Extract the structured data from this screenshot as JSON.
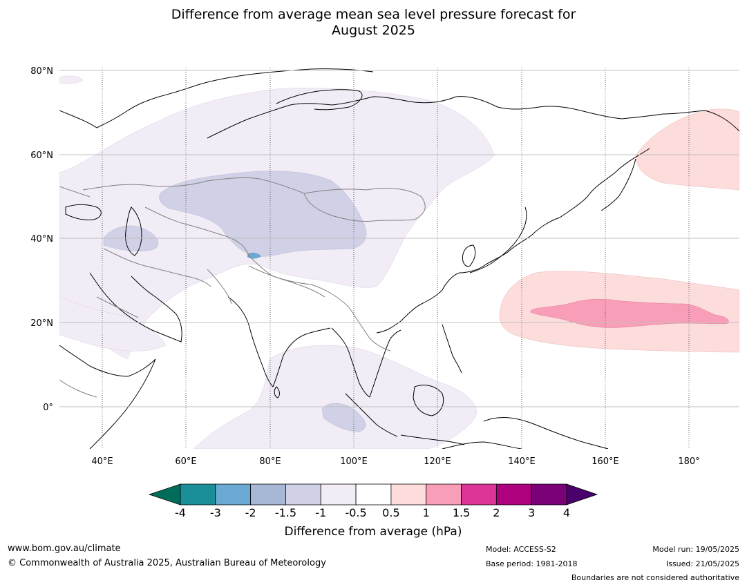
{
  "title_line1": "Difference from average mean sea level pressure forecast for",
  "title_line2": "August 2025",
  "map": {
    "lon_ticks": [
      "40°E",
      "60°E",
      "80°E",
      "100°E",
      "120°E",
      "140°E",
      "160°E",
      "180°"
    ],
    "lat_ticks": [
      "80°N",
      "60°N",
      "40°N",
      "20°N",
      "0°"
    ]
  },
  "colorbar": {
    "label": "Difference from average (hPa)",
    "ticks": [
      "-4",
      "-3",
      "-2",
      "-1.5",
      "-1",
      "-0.5",
      "0.5",
      "1",
      "1.5",
      "2",
      "3",
      "4"
    ],
    "colors": [
      "#1a8f99",
      "#6aa9d1",
      "#a6b8d6",
      "#d0d1e6",
      "#f2ecf6",
      "#ffffff",
      "#fddcdc",
      "#f99eb8",
      "#dd3497",
      "#ae017e",
      "#7a0177"
    ],
    "under_color": "#016c59",
    "over_color": "#49006a"
  },
  "footer": {
    "website": "www.bom.gov.au/climate",
    "copyright": "© Commonwealth of Australia 2025, Australian Bureau of Meteorology",
    "model": "Model: ACCESS-S2",
    "base_period": "Base period: 1981-2018",
    "model_run": "Model run: 19/05/2025",
    "issued": "Issued: 21/05/2025",
    "boundaries": "Boundaries are not considered authoritative"
  }
}
